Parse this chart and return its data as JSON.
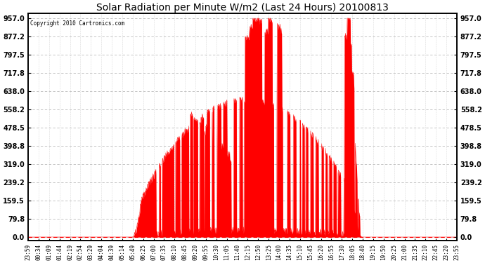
{
  "title": "Solar Radiation per Minute W/m2 (Last 24 Hours) 20100813",
  "copyright": "Copyright 2010 Cartronics.com",
  "yticks": [
    0.0,
    79.8,
    159.5,
    239.2,
    319.0,
    398.8,
    478.5,
    558.2,
    638.0,
    717.8,
    797.5,
    877.2,
    957.0
  ],
  "ymax": 957.0,
  "ymin": 0.0,
  "fill_color": "#ff0000",
  "line_color": "#ff0000",
  "dashed_line_color": "#ff0000",
  "grid_color": "#bbbbbb",
  "bg_color": "#ffffff",
  "plot_bg_color": "#ffffff",
  "xtick_labels": [
    "23:59",
    "00:34",
    "01:09",
    "01:44",
    "02:19",
    "02:54",
    "03:29",
    "04:04",
    "04:39",
    "05:14",
    "05:49",
    "06:25",
    "07:00",
    "07:35",
    "08:10",
    "08:45",
    "09:20",
    "09:55",
    "10:30",
    "11:05",
    "11:40",
    "12:15",
    "12:50",
    "13:25",
    "14:00",
    "14:35",
    "15:10",
    "15:45",
    "16:20",
    "16:55",
    "17:30",
    "18:05",
    "18:40",
    "19:15",
    "19:50",
    "20:25",
    "21:00",
    "21:35",
    "22:10",
    "22:45",
    "23:20",
    "23:55"
  ],
  "figwidth": 6.9,
  "figheight": 3.75,
  "dpi": 100
}
